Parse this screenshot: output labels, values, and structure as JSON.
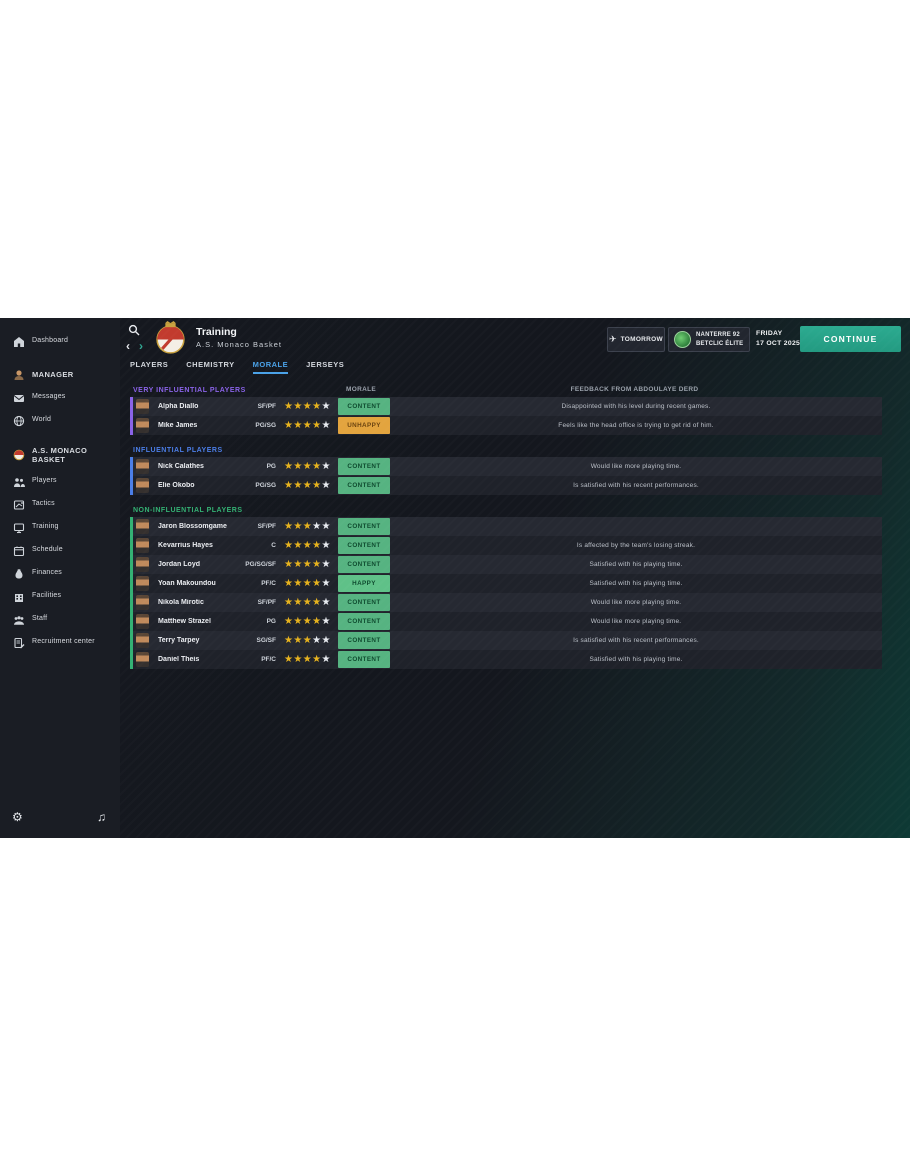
{
  "header": {
    "title": "Training",
    "subtitle": "A.S. Monaco Basket",
    "tomorrow_label": "TOMORROW",
    "next_match_team": "NANTERRE 92",
    "next_match_league": "BETCLIC ÉLITE",
    "date_day": "FRIDAY",
    "date_value": "17 OCT 2025",
    "continue_label": "CONTINUE"
  },
  "tabs": [
    {
      "label": "PLAYERS",
      "active": false
    },
    {
      "label": "CHEMISTRY",
      "active": false
    },
    {
      "label": "MORALE",
      "active": true
    },
    {
      "label": "JERSEYS",
      "active": false
    }
  ],
  "sidebar": {
    "items": [
      {
        "label": "Dashboard",
        "icon": "dashboard-icon",
        "bold": false,
        "gap": ""
      },
      {
        "label": "MANAGER",
        "icon": "manager-avatar",
        "bold": true,
        "gap": "gap-lg"
      },
      {
        "label": "Messages",
        "icon": "messages-icon",
        "bold": false,
        "gap": ""
      },
      {
        "label": "World",
        "icon": "world-icon",
        "bold": false,
        "gap": ""
      },
      {
        "label": "A.S. MONACO\nBASKET",
        "icon": "club-crest-icon",
        "bold": true,
        "gap": "gap-md",
        "tall": true
      },
      {
        "label": "Players",
        "icon": "players-icon",
        "bold": false,
        "gap": ""
      },
      {
        "label": "Tactics",
        "icon": "tactics-icon",
        "bold": false,
        "gap": ""
      },
      {
        "label": "Training",
        "icon": "training-icon",
        "bold": false,
        "gap": ""
      },
      {
        "label": "Schedule",
        "icon": "schedule-icon",
        "bold": false,
        "gap": ""
      },
      {
        "label": "Finances",
        "icon": "finances-icon",
        "bold": false,
        "gap": ""
      },
      {
        "label": "Facilities",
        "icon": "facilities-icon",
        "bold": false,
        "gap": ""
      },
      {
        "label": "Staff",
        "icon": "staff-icon",
        "bold": false,
        "gap": ""
      },
      {
        "label": "Recruitment center",
        "icon": "recruitment-icon",
        "bold": false,
        "gap": ""
      }
    ],
    "footer_icons": [
      {
        "name": "settings-gear-icon",
        "glyph": "⚙"
      },
      {
        "name": "music-note-icon",
        "glyph": "♫"
      }
    ]
  },
  "table": {
    "stars_total": 5,
    "morale_column_header": "MORALE",
    "feedback_column_header": "FEEDBACK FROM ABDOULAYE DERD",
    "morale_styles": {
      "CONTENT": {
        "bg": "#56b381",
        "text": "#0e4a2e"
      },
      "HAPPY": {
        "bg": "#5fc188",
        "text": "#0e4a2e"
      },
      "UNHAPPY": {
        "bg": "#e3a43e",
        "text": "#6b4310"
      }
    },
    "sections": [
      {
        "title": "VERY INFLUENTIAL PLAYERS",
        "color": "#8a63e8",
        "rows": [
          {
            "name": "Alpha Diallo",
            "position": "SF/PF",
            "stars": 4,
            "morale": "CONTENT",
            "feedback": "Disappointed with his level during recent games."
          },
          {
            "name": "Mike James",
            "position": "PG/SG",
            "stars": 4,
            "morale": "UNHAPPY",
            "feedback": "Feels like the head office is trying to get rid of him."
          }
        ]
      },
      {
        "title": "INFLUENTIAL PLAYERS",
        "color": "#4b7ee8",
        "rows": [
          {
            "name": "Nick Calathes",
            "position": "PG",
            "stars": 4,
            "morale": "CONTENT",
            "feedback": "Would like more playing time."
          },
          {
            "name": "Elie Okobo",
            "position": "PG/SG",
            "stars": 4,
            "morale": "CONTENT",
            "feedback": "Is satisfied with his recent performances."
          }
        ]
      },
      {
        "title": "NON-INFLUENTIAL PLAYERS",
        "color": "#33b173",
        "rows": [
          {
            "name": "Jaron Blossomgame",
            "position": "SF/PF",
            "stars": 3,
            "morale": "CONTENT",
            "feedback": ""
          },
          {
            "name": "Kevarrius Hayes",
            "position": "C",
            "stars": 4,
            "morale": "CONTENT",
            "feedback": "Is affected by the team's losing streak."
          },
          {
            "name": "Jordan Loyd",
            "position": "PG/SG/SF",
            "stars": 4,
            "morale": "CONTENT",
            "feedback": "Satisfied with his playing time."
          },
          {
            "name": "Yoan Makoundou",
            "position": "PF/C",
            "stars": 4,
            "morale": "HAPPY",
            "feedback": "Satisfied with his playing time."
          },
          {
            "name": "Nikola Mirotic",
            "position": "SF/PF",
            "stars": 4,
            "morale": "CONTENT",
            "feedback": "Would like more playing time."
          },
          {
            "name": "Matthew Strazel",
            "position": "PG",
            "stars": 4,
            "morale": "CONTENT",
            "feedback": "Would like more playing time."
          },
          {
            "name": "Terry Tarpey",
            "position": "SG/SF",
            "stars": 3,
            "morale": "CONTENT",
            "feedback": "Is satisfied with his recent performances."
          },
          {
            "name": "Daniel Theis",
            "position": "PF/C",
            "stars": 4,
            "morale": "CONTENT",
            "feedback": "Satisfied with his playing time."
          }
        ]
      }
    ]
  }
}
